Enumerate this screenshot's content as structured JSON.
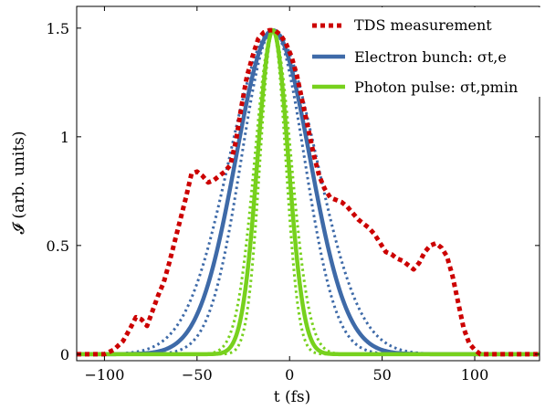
{
  "chart_data": {
    "type": "line",
    "xlabel": "t (fs)",
    "ylabel": "𝓘 (arb. units)",
    "xlim": [
      -115,
      135
    ],
    "ylim": [
      -0.03,
      1.6
    ],
    "xticks": [
      -100,
      -50,
      0,
      50,
      100
    ],
    "xtick_labels": [
      "−100",
      "−50",
      "0",
      "50",
      "100"
    ],
    "yticks": [
      0,
      0.5,
      1,
      1.5
    ],
    "ytick_labels": [
      "0",
      "0.5",
      "1",
      "1.5"
    ],
    "grid": false,
    "legend_position": "top-right",
    "legend": [
      {
        "label": "TDS measurement",
        "color": "#cc0000",
        "style": "dotted-thick"
      },
      {
        "label": "Electron bunch: σt,e",
        "color": "#3e6aa8",
        "style": "solid"
      },
      {
        "label": "Photon pulse: σt,pmin",
        "color": "#77d11d",
        "style": "solid"
      }
    ],
    "series": [
      {
        "name": "TDS measurement",
        "color": "#cc0000",
        "style": "dotted-thick",
        "x": [
          -115,
          -100,
          -95,
          -90,
          -86,
          -83,
          -80,
          -77,
          -74,
          -71,
          -68,
          -65,
          -62,
          -59,
          -56,
          -53,
          -50,
          -47,
          -44,
          -41,
          -38,
          -35,
          -32,
          -29,
          -26,
          -23,
          -20,
          -17,
          -14,
          -11,
          -8,
          -5,
          -2,
          1,
          4,
          7,
          10,
          13,
          16,
          19,
          22,
          25,
          28,
          31,
          34,
          37,
          40,
          43,
          46,
          49,
          52,
          55,
          58,
          61,
          64,
          67,
          70,
          73,
          76,
          79,
          82,
          85,
          88,
          91,
          94,
          97,
          100,
          103,
          106,
          135
        ],
        "y": [
          0.0,
          0.0,
          0.02,
          0.06,
          0.12,
          0.17,
          0.16,
          0.13,
          0.2,
          0.27,
          0.33,
          0.42,
          0.52,
          0.62,
          0.72,
          0.83,
          0.84,
          0.82,
          0.79,
          0.8,
          0.82,
          0.84,
          0.87,
          0.98,
          1.14,
          1.28,
          1.37,
          1.45,
          1.48,
          1.49,
          1.49,
          1.47,
          1.43,
          1.37,
          1.28,
          1.16,
          1.04,
          0.92,
          0.82,
          0.76,
          0.72,
          0.71,
          0.7,
          0.68,
          0.65,
          0.62,
          0.6,
          0.58,
          0.55,
          0.51,
          0.47,
          0.46,
          0.44,
          0.43,
          0.41,
          0.39,
          0.42,
          0.47,
          0.5,
          0.51,
          0.49,
          0.45,
          0.36,
          0.24,
          0.12,
          0.05,
          0.02,
          0.0,
          0.0,
          0.0
        ]
      },
      {
        "name": "Electron bunch: σt,e",
        "color": "#3e6aa8",
        "style": "solid",
        "gaussian": {
          "amplitude": 1.49,
          "center": -9,
          "sigma": 20
        }
      },
      {
        "color": "#3e6aa8",
        "style": "dotted",
        "gaussian": {
          "amplitude": 1.49,
          "center": -9,
          "sigma": 17
        }
      },
      {
        "color": "#3e6aa8",
        "style": "dotted",
        "gaussian": {
          "amplitude": 1.49,
          "center": -9,
          "sigma": 23.5
        }
      },
      {
        "name": "Photon pulse: σt,pmin",
        "color": "#77d11d",
        "style": "solid",
        "gaussian": {
          "amplitude": 1.49,
          "center": -9,
          "sigma": 8.3
        }
      },
      {
        "color": "#77d11d",
        "style": "dotted",
        "gaussian": {
          "amplitude": 1.49,
          "center": -9,
          "sigma": 6.9
        }
      },
      {
        "color": "#77d11d",
        "style": "dotted",
        "gaussian": {
          "amplitude": 1.49,
          "center": -9,
          "sigma": 9.8
        }
      }
    ]
  }
}
